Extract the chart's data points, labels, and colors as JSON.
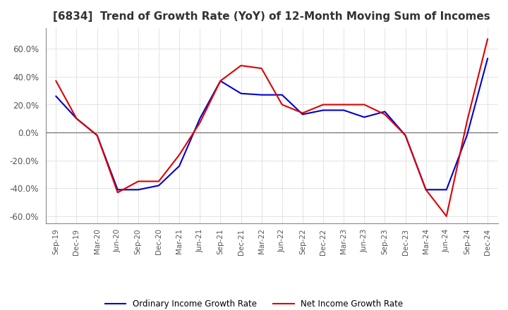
{
  "title": "[6834]  Trend of Growth Rate (YoY) of 12-Month Moving Sum of Incomes",
  "ylim": [
    -0.65,
    0.75
  ],
  "yticks": [
    -0.6,
    -0.4,
    -0.2,
    0.0,
    0.2,
    0.4,
    0.6
  ],
  "background_color": "#ffffff",
  "grid_color": "#aaaaaa",
  "ordinary_color": "#0000cc",
  "net_color": "#dd0000",
  "legend_labels": [
    "Ordinary Income Growth Rate",
    "Net Income Growth Rate"
  ],
  "x_labels": [
    "Sep-19",
    "Dec-19",
    "Mar-20",
    "Jun-20",
    "Sep-20",
    "Dec-20",
    "Mar-21",
    "Jun-21",
    "Sep-21",
    "Dec-21",
    "Mar-22",
    "Jun-22",
    "Sep-22",
    "Dec-22",
    "Mar-23",
    "Jun-23",
    "Sep-23",
    "Dec-23",
    "Mar-24",
    "Jun-24",
    "Sep-24",
    "Dec-24"
  ],
  "ordinary_income_growth": [
    0.26,
    0.1,
    -0.02,
    -0.41,
    -0.41,
    -0.38,
    -0.24,
    0.1,
    0.37,
    0.28,
    0.27,
    0.27,
    0.13,
    0.16,
    0.16,
    0.11,
    0.15,
    -0.02,
    -0.41,
    -0.41,
    -0.02,
    0.53
  ],
  "net_income_growth": [
    0.37,
    0.1,
    -0.02,
    -0.43,
    -0.35,
    -0.35,
    -0.16,
    0.07,
    0.37,
    0.48,
    0.46,
    0.2,
    0.14,
    0.2,
    0.2,
    0.2,
    0.13,
    -0.02,
    -0.41,
    -0.6,
    0.08,
    0.67
  ]
}
